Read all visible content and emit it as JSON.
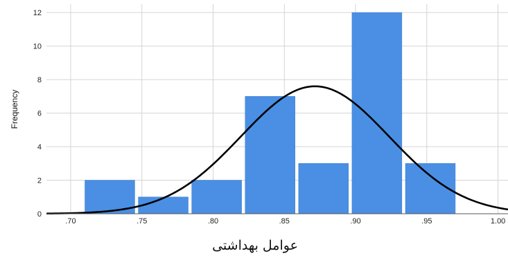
{
  "chart_data": {
    "type": "bar",
    "title": "",
    "xlabel": "عوامل بهداشتی",
    "ylabel": "Frequency",
    "bins": [
      {
        "start": 0.71,
        "end": 0.745,
        "count": 2
      },
      {
        "start": 0.7475,
        "end": 0.7825,
        "count": 1
      },
      {
        "start": 0.785,
        "end": 0.82,
        "count": 2
      },
      {
        "start": 0.8225,
        "end": 0.8575,
        "count": 7
      },
      {
        "start": 0.86,
        "end": 0.895,
        "count": 3
      },
      {
        "start": 0.8975,
        "end": 0.9325,
        "count": 12
      },
      {
        "start": 0.935,
        "end": 0.97,
        "count": 3
      }
    ],
    "x_ticks": [
      ".70",
      ".75",
      ".80",
      ".85",
      ".90",
      ".95",
      "1.00"
    ],
    "x_tick_values": [
      0.7,
      0.75,
      0.8,
      0.85,
      0.9,
      0.95,
      1.0
    ],
    "y_ticks": [
      "0",
      "2",
      "4",
      "6",
      "8",
      "10",
      "12"
    ],
    "y_tick_values": [
      0,
      2,
      4,
      6,
      8,
      10,
      12
    ],
    "xlim": [
      0.683,
      1.007
    ],
    "ylim": [
      0,
      12.5
    ],
    "normal_curve": {
      "mean": 0.8715,
      "sd": 0.052,
      "peak": 7.6
    },
    "grid": true,
    "bar_color": "#4a8fe3",
    "curve_color": "#000000"
  }
}
